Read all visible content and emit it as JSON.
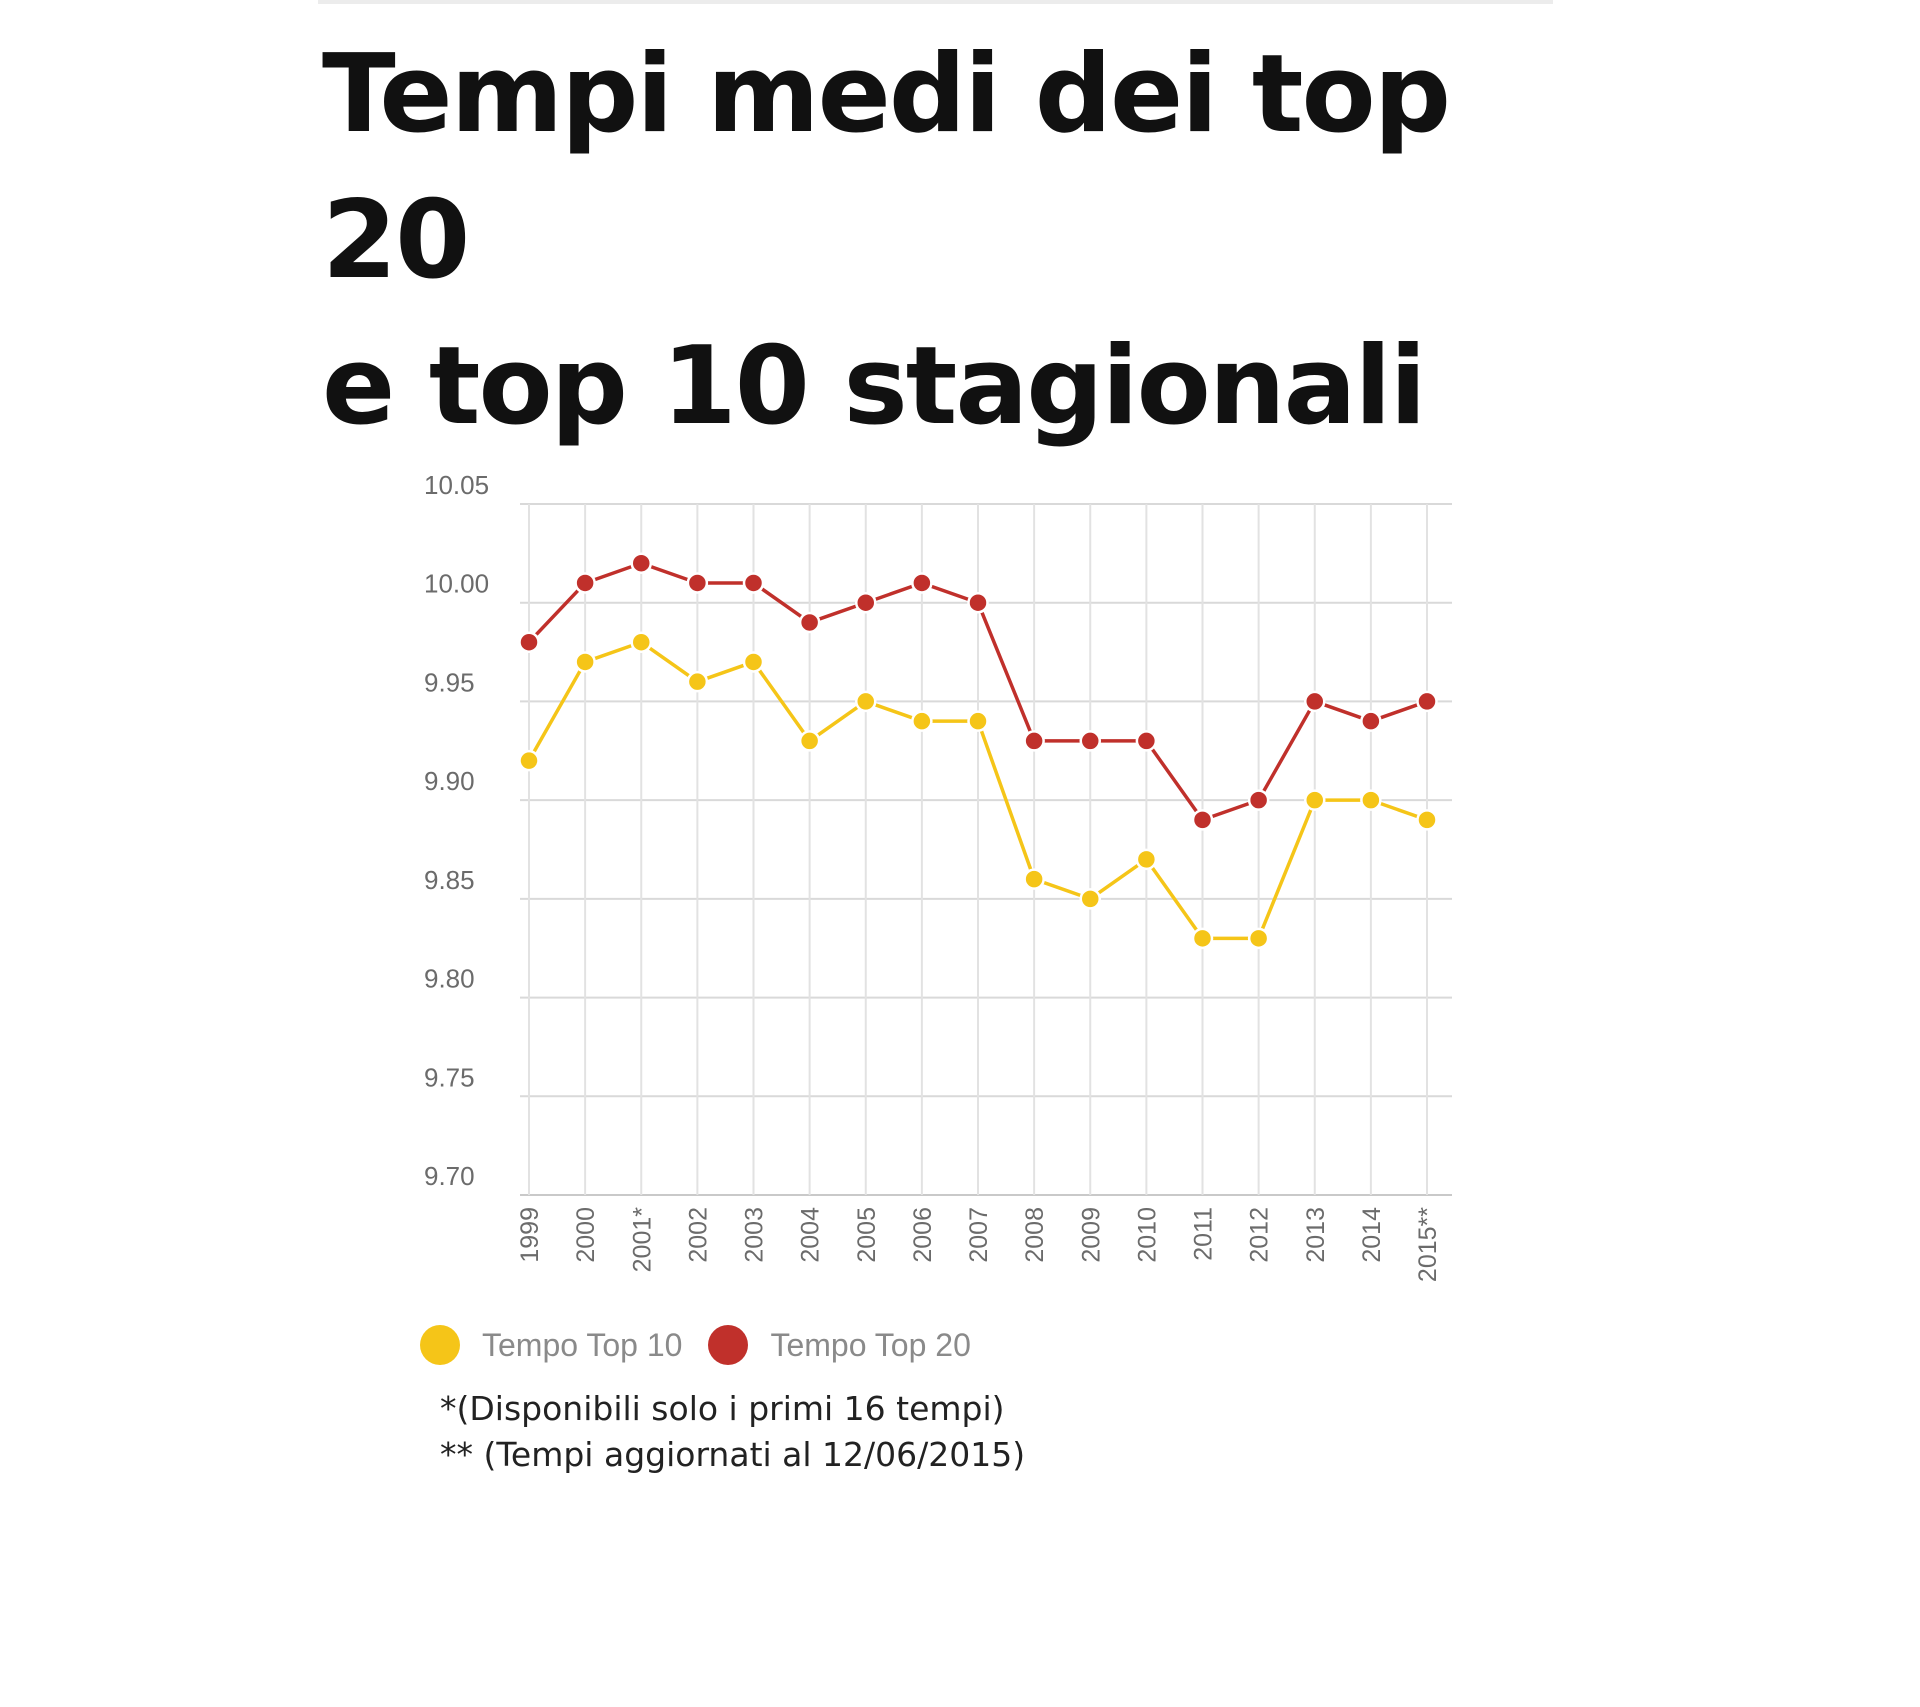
{
  "title_line1": "Tempi medi dei top 20",
  "title_line2": "e top 10 stagionali",
  "chart_data": {
    "type": "line",
    "title": "Tempi medi dei top 20 e top 10 stagionali",
    "xlabel": "",
    "ylabel": "",
    "categories": [
      "1999",
      "2000",
      "2001*",
      "2002",
      "2003",
      "2004",
      "2005",
      "2006",
      "2007",
      "2008",
      "2009",
      "2010",
      "2011",
      "2012",
      "2013",
      "2014",
      "2015**"
    ],
    "y_ticks": [
      "9.70",
      "9.75",
      "9.80",
      "9.85",
      "9.90",
      "9.95",
      "10.00",
      "10.05"
    ],
    "ylim": [
      9.7,
      10.05
    ],
    "grid": true,
    "legend_position": "bottom-left",
    "series": [
      {
        "name": "Tempo Top 10",
        "color": "#f5c518",
        "values": [
          9.92,
          9.97,
          9.98,
          9.96,
          9.97,
          9.93,
          9.95,
          9.94,
          9.94,
          9.86,
          9.85,
          9.87,
          9.83,
          9.83,
          9.9,
          9.9,
          9.89
        ]
      },
      {
        "name": "Tempo Top 20",
        "color": "#c0302b",
        "values": [
          9.98,
          10.01,
          10.02,
          10.01,
          10.01,
          9.99,
          10.0,
          10.01,
          10.0,
          9.93,
          9.93,
          9.93,
          9.89,
          9.9,
          9.95,
          9.94,
          9.95
        ]
      }
    ]
  },
  "notes": {
    "note1": "*(Disponibili solo i primi 16 tempi)",
    "note2": "** (Tempi aggiornati al 12/06/2015)"
  }
}
